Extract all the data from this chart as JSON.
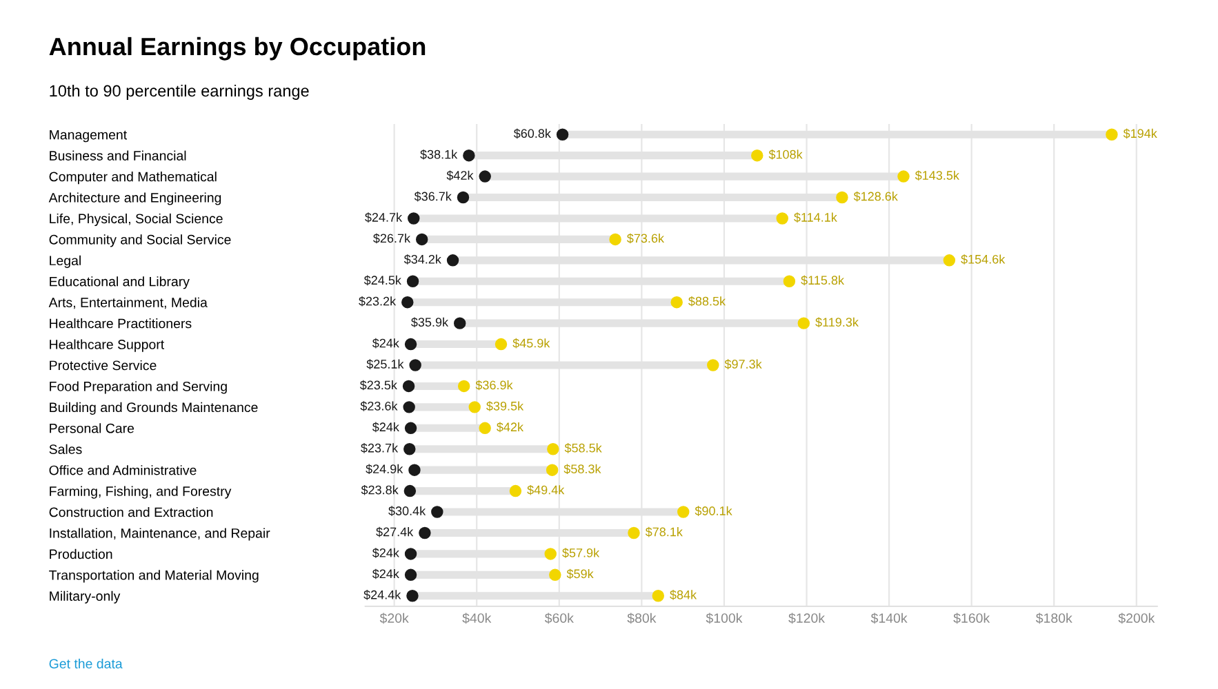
{
  "chart_data": {
    "type": "scatter",
    "orientation": "horizontal",
    "title": "Annual Earnings by Occupation",
    "subtitle": "10th to 90 percentile earnings range",
    "categories": [
      "Management",
      "Business and Financial",
      "Computer and Mathematical",
      "Architecture and Engineering",
      "Life, Physical, Social Science",
      "Community and Social Service",
      "Legal",
      "Educational and Library",
      "Arts, Entertainment, Media",
      "Healthcare Practitioners",
      "Healthcare Support",
      "Protective Service",
      "Food Preparation and Serving",
      "Building and Grounds Maintenance",
      "Personal Care",
      "Sales",
      "Office and Administrative",
      "Farming, Fishing, and Forestry",
      "Construction and Extraction",
      "Installation, Maintenance, and Repair",
      "Production",
      "Transportation and Material Moving",
      "Military-only"
    ],
    "series": [
      {
        "color": "#1a1a1a",
        "values": [
          60.8,
          38.1,
          42,
          36.7,
          24.7,
          26.7,
          34.2,
          24.5,
          23.2,
          35.9,
          24,
          25.1,
          23.5,
          23.6,
          24,
          23.7,
          24.9,
          23.8,
          30.4,
          27.4,
          24,
          24,
          24.4
        ],
        "value_labels": [
          "$60.8k",
          "$38.1k",
          "$42k",
          "$36.7k",
          "$24.7k",
          "$26.7k",
          "$34.2k",
          "$24.5k",
          "$23.2k",
          "$35.9k",
          "$24k",
          "$25.1k",
          "$23.5k",
          "$23.6k",
          "$24k",
          "$23.7k",
          "$24.9k",
          "$23.8k",
          "$30.4k",
          "$27.4k",
          "$24k",
          "$24k",
          "$24.4k"
        ]
      },
      {
        "color": "#f2d600",
        "values": [
          194,
          108,
          143.5,
          128.6,
          114.1,
          73.6,
          154.6,
          115.8,
          88.5,
          119.3,
          45.9,
          97.3,
          36.9,
          39.5,
          42,
          58.5,
          58.3,
          49.4,
          90.1,
          78.1,
          57.9,
          59,
          84
        ],
        "value_labels": [
          "$194k",
          "$108k",
          "$143.5k",
          "$128.6k",
          "$114.1k",
          "$73.6k",
          "$154.6k",
          "$115.8k",
          "$88.5k",
          "$119.3k",
          "$45.9k",
          "$97.3k",
          "$36.9k",
          "$39.5k",
          "$42k",
          "$58.5k",
          "$58.3k",
          "$49.4k",
          "$90.1k",
          "$78.1k",
          "$57.9k",
          "$59k",
          "$84k"
        ]
      }
    ],
    "xlim": [
      13,
      205
    ],
    "xticks": [
      {
        "value": 20,
        "label": "$20k"
      },
      {
        "value": 40,
        "label": "$40k"
      },
      {
        "value": 60,
        "label": "$60k"
      },
      {
        "value": 80,
        "label": "$80k"
      },
      {
        "value": 100,
        "label": "$100k"
      },
      {
        "value": 120,
        "label": "$120k"
      },
      {
        "value": 140,
        "label": "$140k"
      },
      {
        "value": 160,
        "label": "$160k"
      },
      {
        "value": 180,
        "label": "$180k"
      },
      {
        "value": 200,
        "label": "$200k"
      }
    ],
    "grid": "x",
    "marker": "circle",
    "annotations": [
      "Get the data"
    ]
  }
}
